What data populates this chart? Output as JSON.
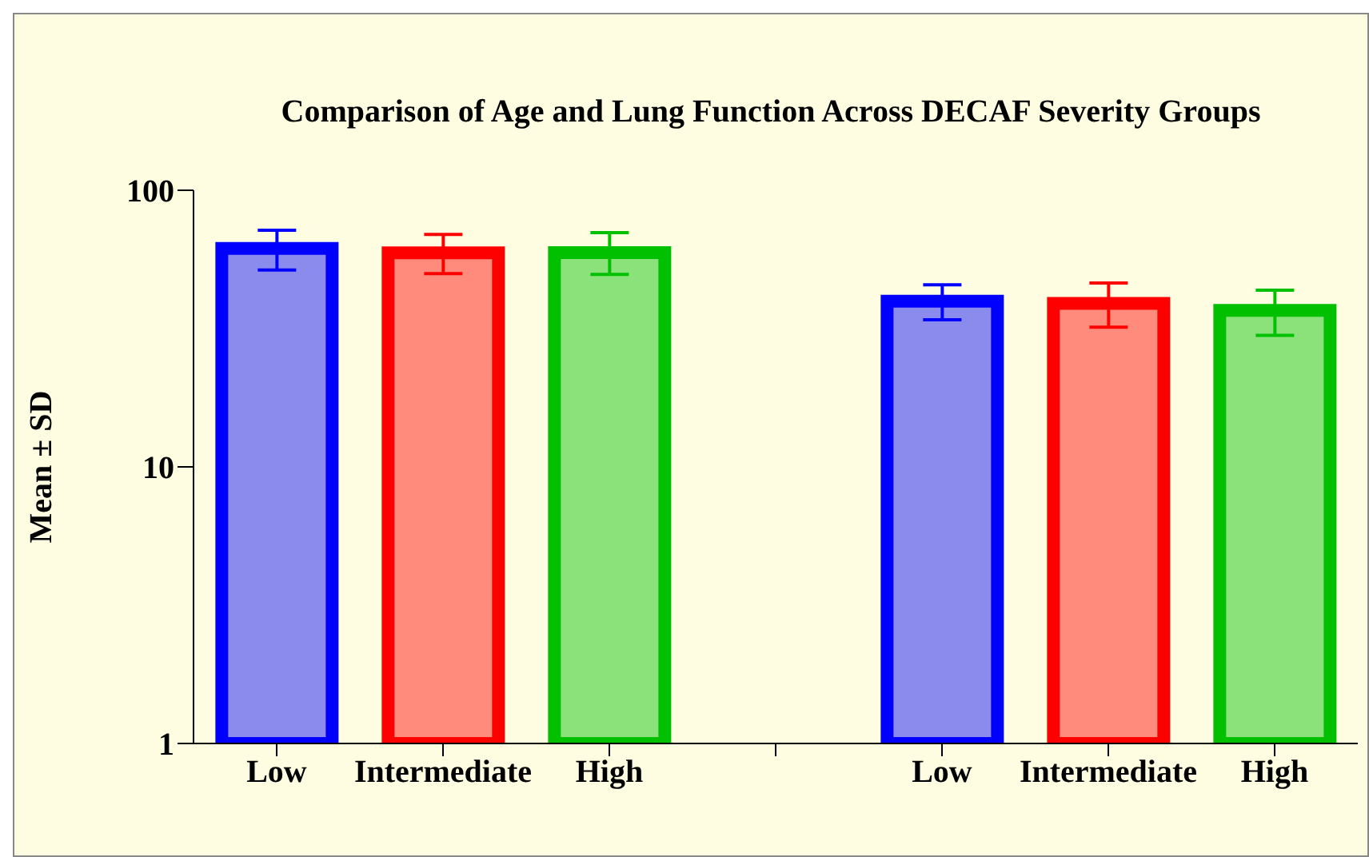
{
  "chart_data": {
    "type": "bar",
    "title": "Comparison of Age and Lung Function Across DECAF Severity Groups",
    "ylabel": "Mean ± SD",
    "categories": [
      "Low",
      "Intermediate",
      "High",
      null,
      "Low",
      "Intermediate",
      "High"
    ],
    "values": [
      61.6,
      59.4,
      59.5,
      null,
      39.7,
      39,
      36.8
    ],
    "errors": [
      [
        51.5,
        71.7
      ],
      [
        50,
        69.2
      ],
      [
        49.6,
        70.3
      ],
      null,
      [
        34,
        45.5
      ],
      [
        32,
        46.2
      ],
      [
        29.9,
        43.5
      ]
    ],
    "colors": [
      "#0000ff",
      "#ff0000",
      "#00c000",
      null,
      "#0000ff",
      "#ff0000",
      "#00c000"
    ],
    "log": "y",
    "ylim": [
      1,
      100
    ],
    "yticks": [
      1,
      10,
      100
    ]
  }
}
